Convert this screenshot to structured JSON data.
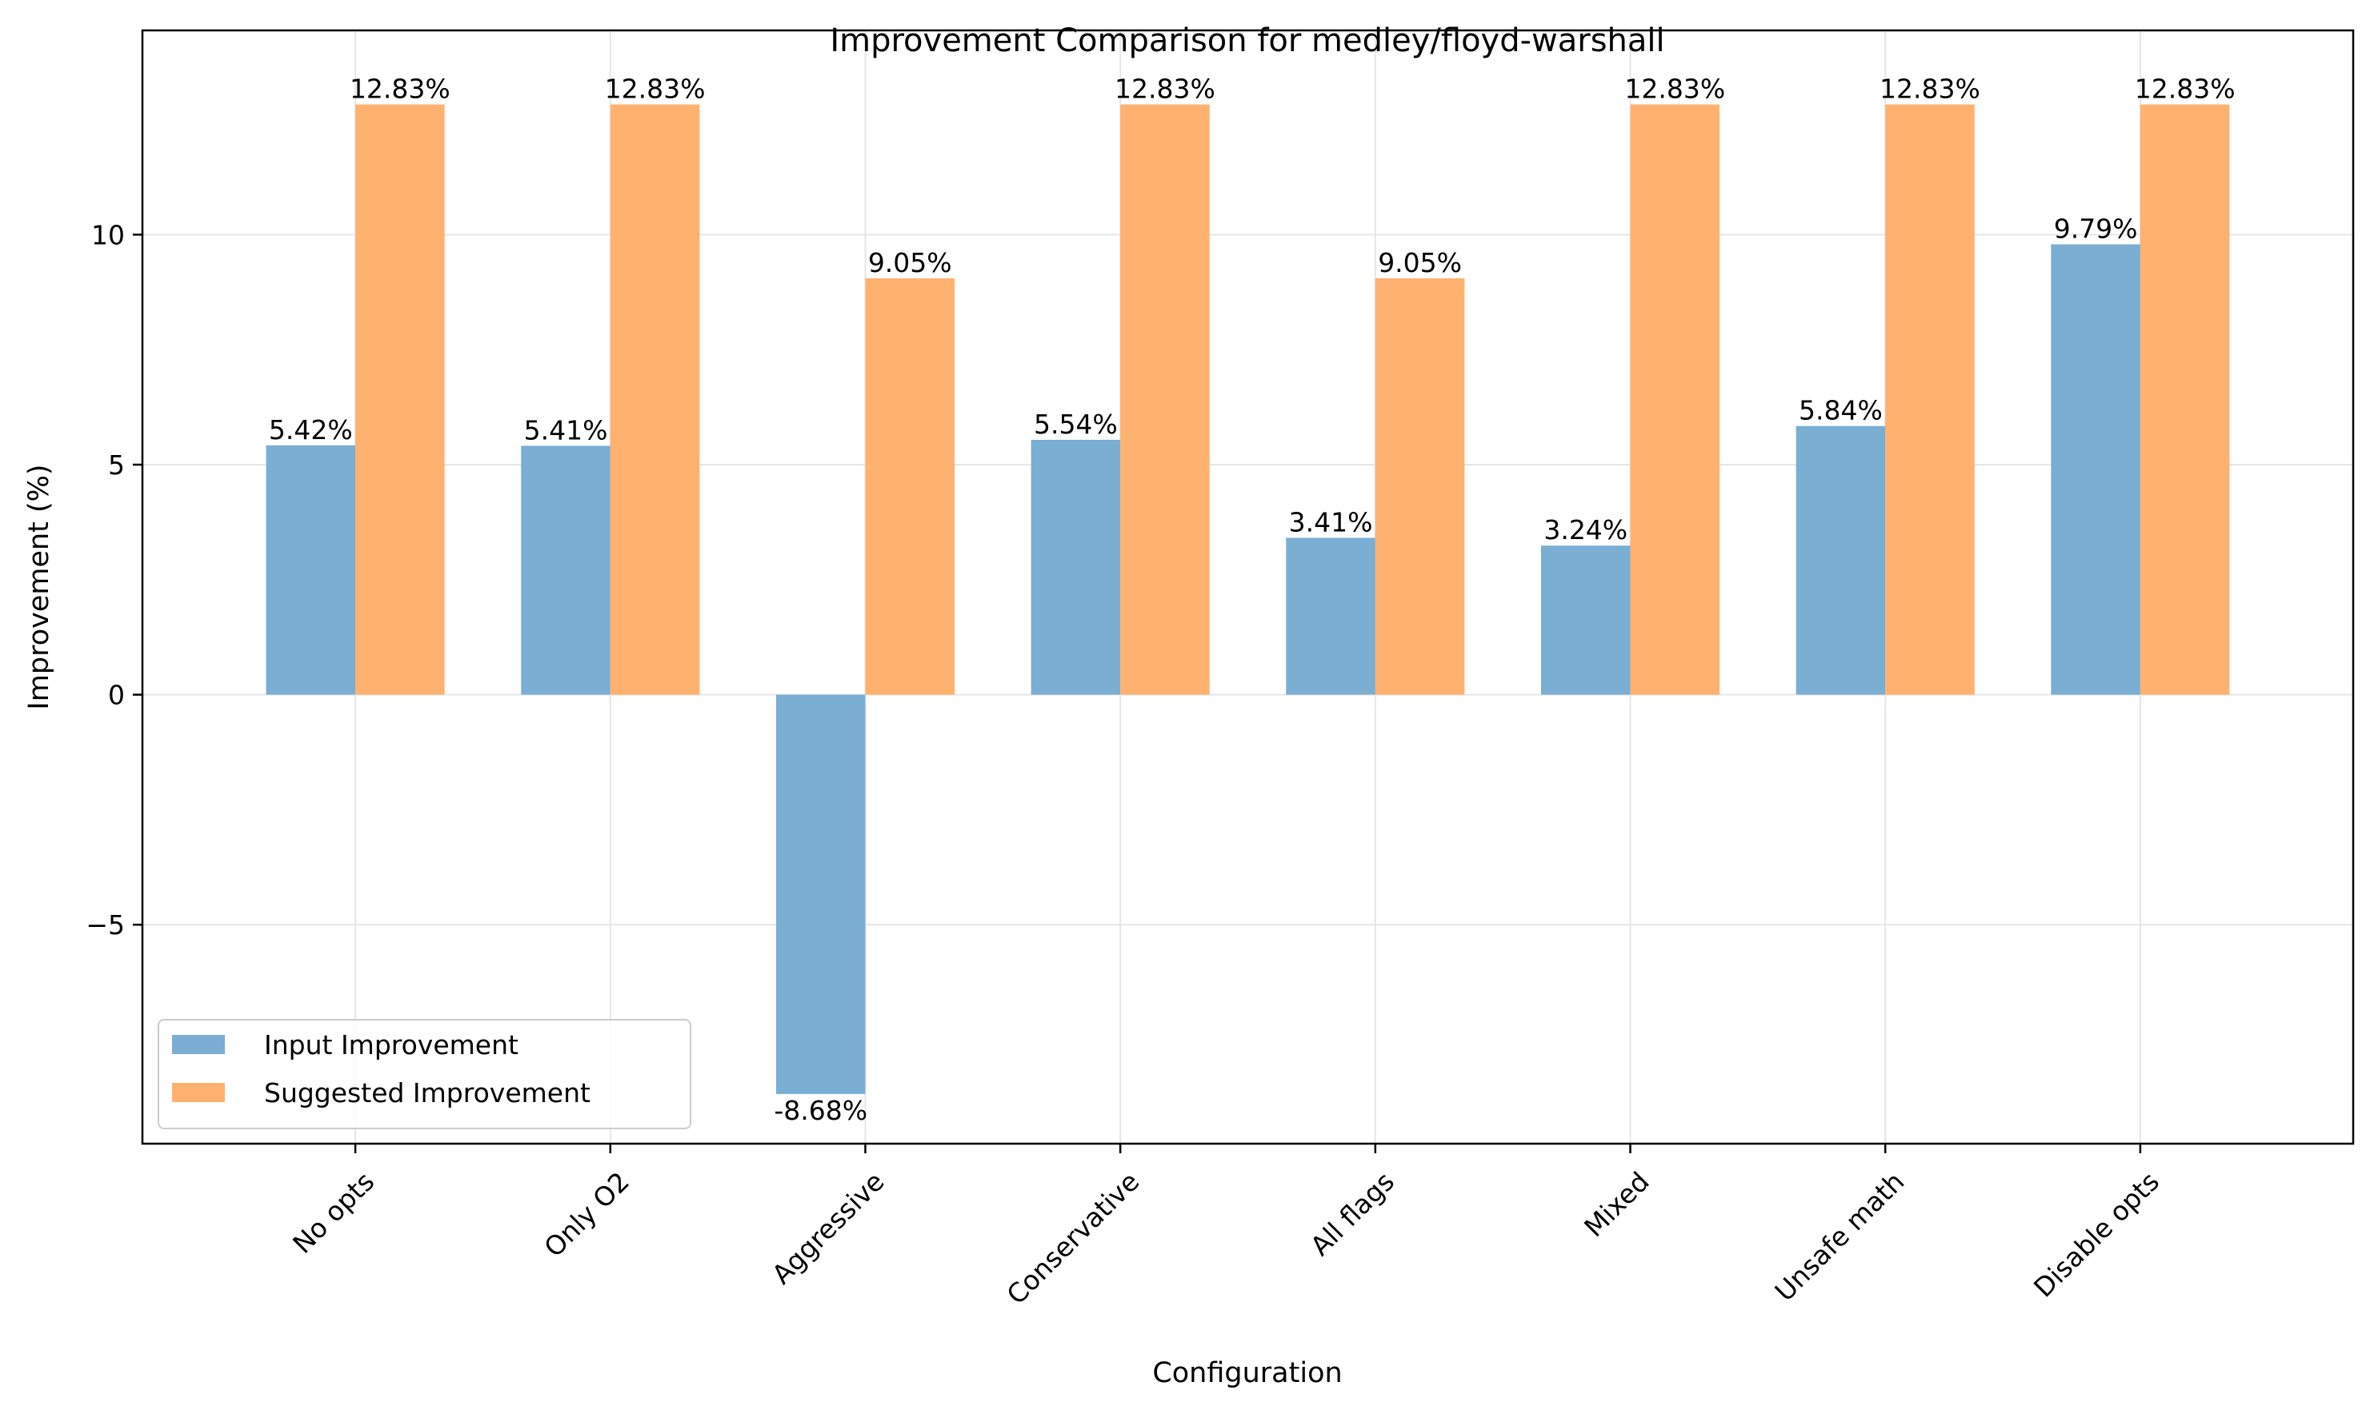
{
  "chart_data": {
    "type": "bar",
    "title": "Improvement Comparison for medley/floyd-warshall",
    "xlabel": "Configuration",
    "ylabel": "Improvement (%)",
    "categories": [
      "No opts",
      "Only O2",
      "Aggressive",
      "Conservative",
      "All flags",
      "Mixed",
      "Unsafe math",
      "Disable opts"
    ],
    "series": [
      {
        "name": "Input Improvement",
        "color": "#7aaed3",
        "values": [
          5.42,
          5.41,
          -8.68,
          5.54,
          3.41,
          3.24,
          5.84,
          9.79
        ],
        "labels": [
          "5.42%",
          "5.41%",
          "-8.68%",
          "5.54%",
          "3.41%",
          "3.24%",
          "5.84%",
          "9.79%"
        ]
      },
      {
        "name": "Suggested Improvement",
        "color": "#ffb16f",
        "values": [
          12.83,
          12.83,
          9.05,
          12.83,
          9.05,
          12.83,
          12.83,
          12.83
        ],
        "labels": [
          "12.83%",
          "12.83%",
          "9.05%",
          "12.83%",
          "9.05%",
          "12.83%",
          "12.83%",
          "12.83%"
        ]
      }
    ],
    "ylim": [
      -9.76,
      14.44
    ],
    "yticks": [
      -5,
      0,
      5,
      10
    ],
    "ytick_labels": [
      "−5",
      "0",
      "5",
      "10"
    ],
    "grid": true,
    "legend_position": "lower-left"
  }
}
